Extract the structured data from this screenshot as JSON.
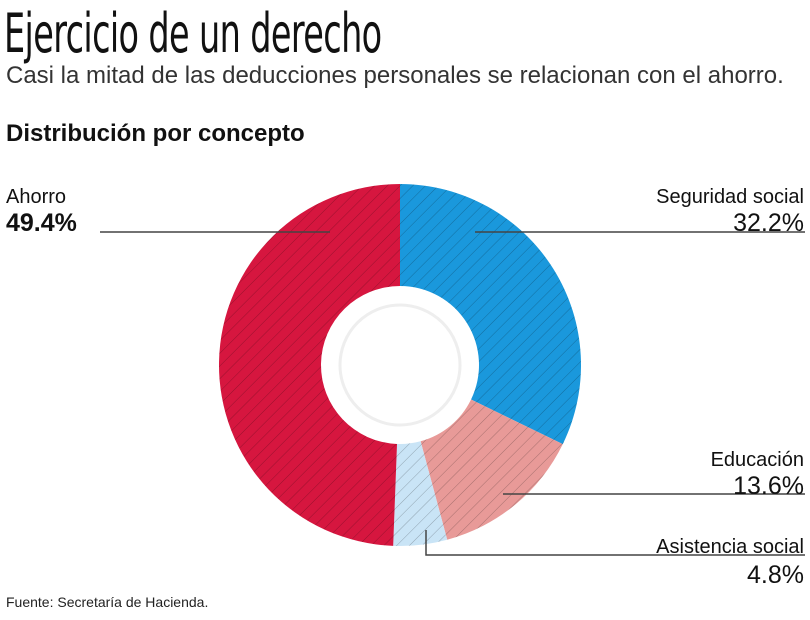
{
  "header": {
    "title": "Ejercicio de un derecho",
    "subtitle": "Casi la mitad de las deducciones personales se relacionan con el ahorro.",
    "section": "Distribución por concepto"
  },
  "chart_data": {
    "type": "pie",
    "subtype": "donut",
    "title": "Distribución por concepto",
    "categories": [
      "Seguridad social",
      "Educación",
      "Asistencia social",
      "Ahorro"
    ],
    "values": [
      32.2,
      13.6,
      4.8,
      49.4
    ],
    "value_labels": [
      "32.2%",
      "13.6%",
      "4.8%",
      "49.4%"
    ],
    "unit": "%",
    "colors": [
      "#1a98dc",
      "#e89a98",
      "#c9e4f6",
      "#d6163f"
    ],
    "hatched": true,
    "start": "top",
    "direction": "clockwise",
    "legend": "none (leader-line labels)"
  },
  "footer": {
    "source": "Fuente: Secretaría de Hacienda."
  }
}
